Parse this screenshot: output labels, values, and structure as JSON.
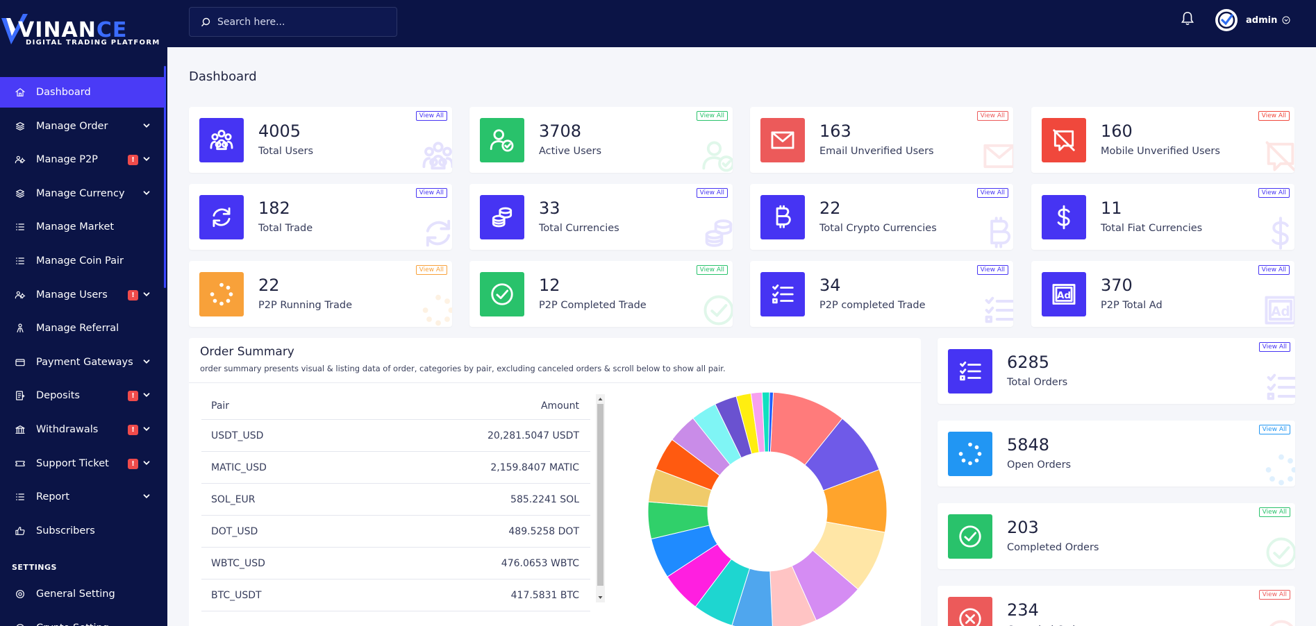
{
  "brand": {
    "name_part1": "VINAN",
    "name_part2": "CE",
    "tagline": "DIGITAL TRADING PLATFORM"
  },
  "header": {
    "search_placeholder": "Search here...",
    "user_name": "admin"
  },
  "sidebar": {
    "items": [
      {
        "label": "Dashboard",
        "icon": "home-icon",
        "active": true,
        "chevron": false,
        "alert": ""
      },
      {
        "label": "Manage Order",
        "icon": "stack-icon",
        "chevron": true,
        "alert": ""
      },
      {
        "label": "Manage P2P",
        "icon": "users-gear-icon",
        "chevron": true,
        "alert": "!"
      },
      {
        "label": "Manage Currency",
        "icon": "stack-icon",
        "chevron": true,
        "alert": ""
      },
      {
        "label": "Manage Market",
        "icon": "list-icon",
        "chevron": false,
        "alert": ""
      },
      {
        "label": "Manage Coin Pair",
        "icon": "list-icon",
        "chevron": false,
        "alert": ""
      },
      {
        "label": "Manage Users",
        "icon": "users-gear-icon",
        "chevron": true,
        "alert": "!"
      },
      {
        "label": "Manage Referral",
        "icon": "referral-icon",
        "chevron": false,
        "alert": ""
      },
      {
        "label": "Payment Gateways",
        "icon": "card-icon",
        "chevron": true,
        "alert": ""
      },
      {
        "label": "Deposits",
        "icon": "deposit-icon",
        "chevron": true,
        "alert": "!"
      },
      {
        "label": "Withdrawals",
        "icon": "bank-icon",
        "chevron": true,
        "alert": "!"
      },
      {
        "label": "Support Ticket",
        "icon": "ticket-icon",
        "chevron": true,
        "alert": "!"
      },
      {
        "label": "Report",
        "icon": "list-icon",
        "chevron": true,
        "alert": ""
      },
      {
        "label": "Subscribers",
        "icon": "thumb-icon",
        "chevron": false,
        "alert": ""
      }
    ],
    "settings_label": "SETTINGS",
    "settings_items": [
      {
        "label": "General Setting",
        "icon": "gear-icon"
      },
      {
        "label": "Crypto Setting",
        "icon": "gear-icon"
      }
    ]
  },
  "page": {
    "title": "Dashboard",
    "view_all": "View All"
  },
  "stats": [
    {
      "value": "4005",
      "label": "Total Users",
      "icon": "users-group-icon",
      "color": "#4634f3"
    },
    {
      "value": "3708",
      "label": "Active Users",
      "icon": "user-check-icon",
      "color": "#29c26b"
    },
    {
      "value": "163",
      "label": "Email Unverified Users",
      "icon": "envelope-icon",
      "color": "#ec5a5a"
    },
    {
      "value": "160",
      "label": "Mobile Unverified Users",
      "icon": "mobile-off-icon",
      "color": "#f0483c"
    },
    {
      "value": "182",
      "label": "Total Trade",
      "icon": "refresh-icon",
      "color": "#4634f3"
    },
    {
      "value": "33",
      "label": "Total Currencies",
      "icon": "coins-icon",
      "color": "#4634f3"
    },
    {
      "value": "22",
      "label": "Total Crypto Currencies",
      "icon": "bitcoin-icon",
      "color": "#4634f3"
    },
    {
      "value": "11",
      "label": "Total Fiat Currencies",
      "icon": "dollar-icon",
      "color": "#4634f3"
    },
    {
      "value": "22",
      "label": "P2P Running Trade",
      "icon": "spinner-icon",
      "color": "#f8a13a"
    },
    {
      "value": "12",
      "label": "P2P Completed Trade",
      "icon": "check-circle-icon",
      "color": "#29c26b"
    },
    {
      "value": "34",
      "label": "P2P completed Trade",
      "icon": "checklist-icon",
      "color": "#4634f3"
    },
    {
      "value": "370",
      "label": "P2P Total Ad",
      "icon": "ad-icon",
      "color": "#4634f3"
    }
  ],
  "order_summary": {
    "title": "Order Summary",
    "description": "order summary presents visual & listing data of order, categories by pair, excluding canceled orders & scroll below to show all pair.",
    "col_pair": "Pair",
    "col_amount": "Amount",
    "rows": [
      {
        "pair": "USDT_USD",
        "amount": "20,281.5047 USDT"
      },
      {
        "pair": "MATIC_USD",
        "amount": "2,159.8407 MATIC"
      },
      {
        "pair": "SOL_EUR",
        "amount": "585.2241 SOL"
      },
      {
        "pair": "DOT_USD",
        "amount": "489.5258 DOT"
      },
      {
        "pair": "WBTC_USD",
        "amount": "476.0653 WBTC"
      },
      {
        "pair": "BTC_USDT",
        "amount": "417.5831 BTC"
      }
    ]
  },
  "order_stats": [
    {
      "value": "6285",
      "label": "Total Orders",
      "icon": "checklist-icon",
      "color": "#4634f3"
    },
    {
      "value": "5848",
      "label": "Open Orders",
      "icon": "spinner-icon",
      "color": "#2196f3"
    },
    {
      "value": "203",
      "label": "Completed Orders",
      "icon": "check-circle-icon",
      "color": "#29c26b"
    },
    {
      "value": "234",
      "label": "Canceled Orders",
      "icon": "cancel-icon",
      "color": "#ec5a5a"
    }
  ],
  "chart_data": {
    "type": "pie",
    "donut": true,
    "values": [
      10,
      8.5,
      8.5,
      8.5,
      7,
      6,
      5.5,
      5.5,
      5.5,
      5.5,
      5,
      4.5,
      4.5,
      4,
      3.5,
      3,
      2,
      1.5,
      1,
      0.5
    ],
    "colors": [
      "#ff7b7b",
      "#6f5ae8",
      "#ffa42c",
      "#ffe6a6",
      "#d58cf3",
      "#ffc4c4",
      "#4fa6ee",
      "#1ed6d0",
      "#ff1fe0",
      "#1f8bff",
      "#30d06a",
      "#f0cb6a",
      "#ff5a10",
      "#c98ce8",
      "#7ff5f5",
      "#6a52d0",
      "#ffee10",
      "#f7a1ef",
      "#10e0c0",
      "#2060ff"
    ]
  }
}
